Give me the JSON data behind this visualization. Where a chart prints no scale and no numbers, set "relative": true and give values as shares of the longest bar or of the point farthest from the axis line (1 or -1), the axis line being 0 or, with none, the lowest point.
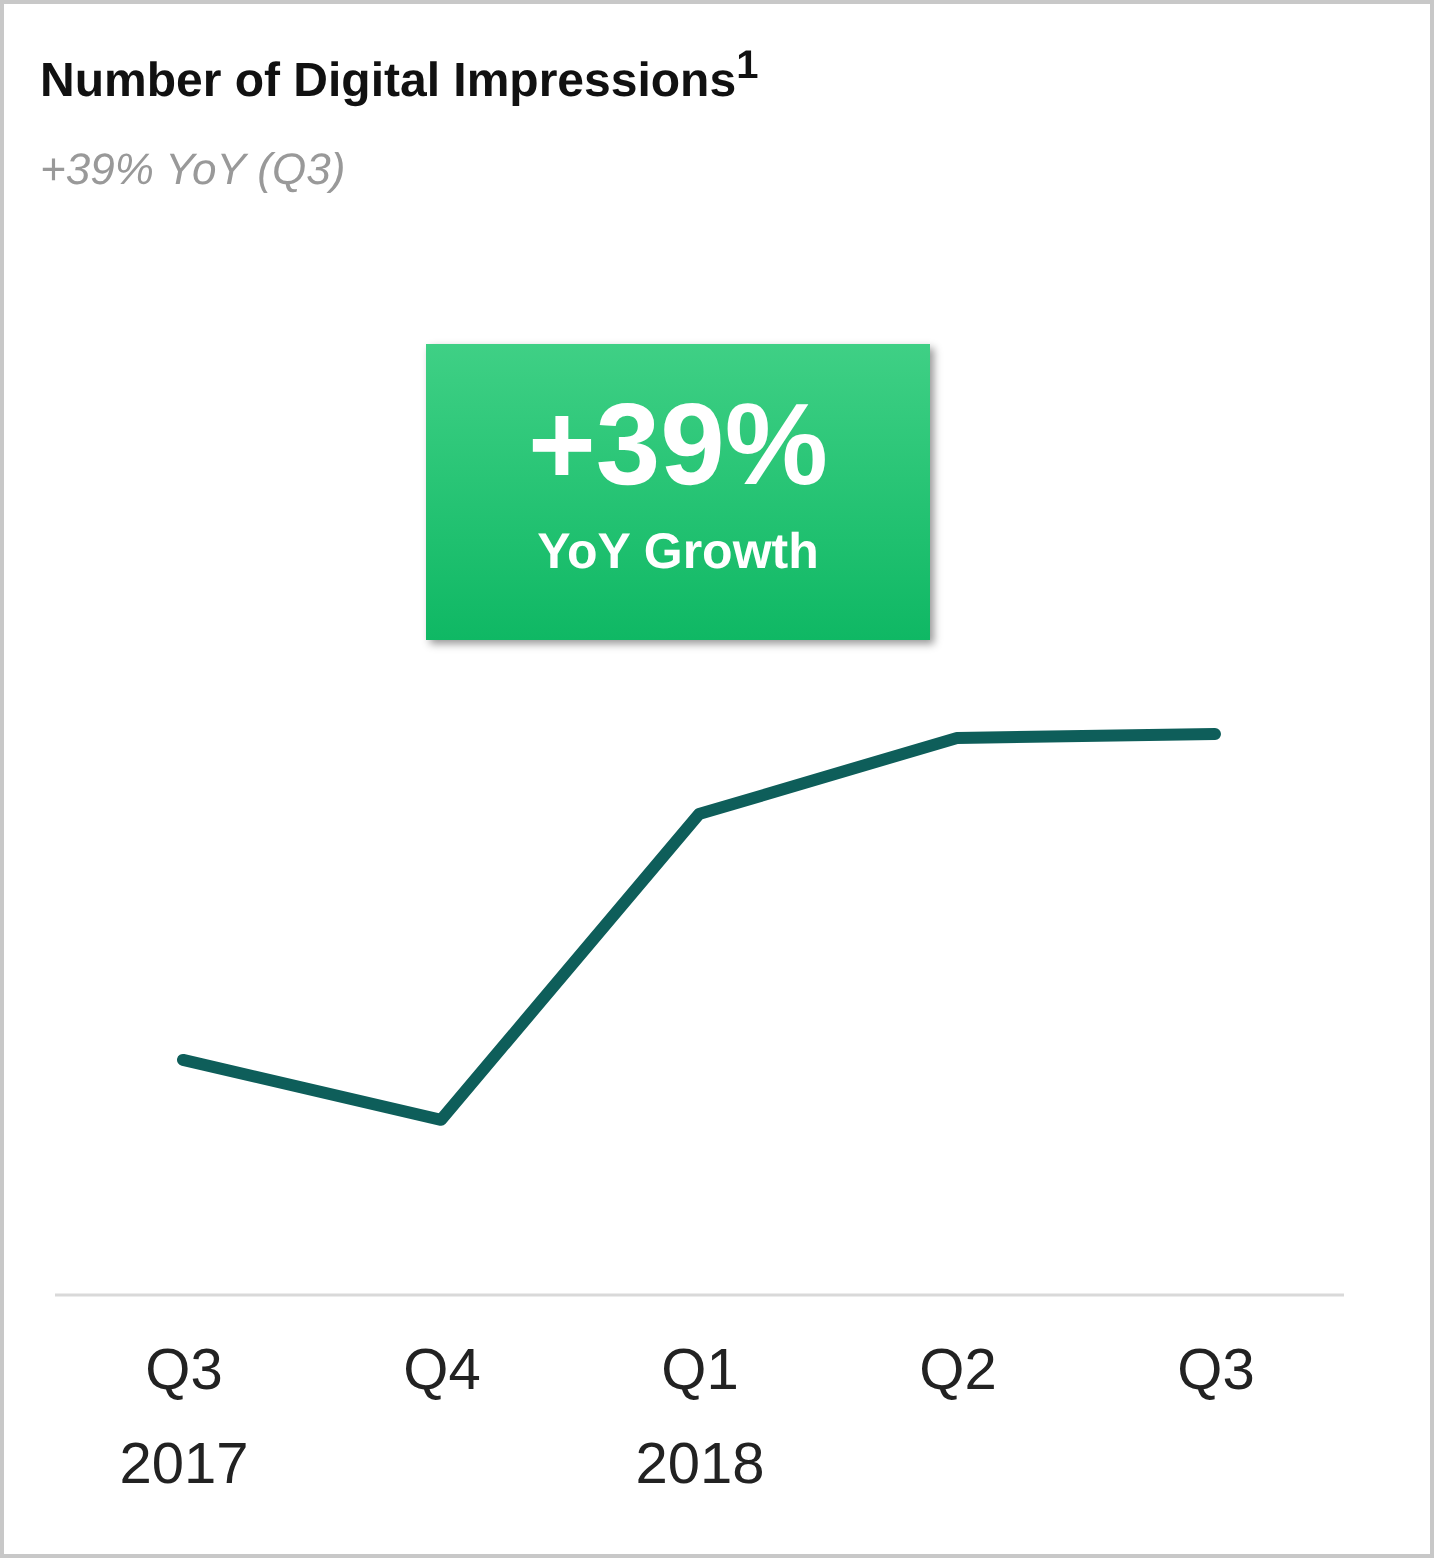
{
  "chart_data": {
    "type": "line",
    "title": "Number of Digital Impressions$^{1}$",
    "subtitle": "+39% YoY (Q3)",
    "categories": [
      "Q3 2017",
      "Q4",
      "Q1 2018",
      "Q2",
      "Q3"
    ],
    "relative": true,
    "values": [
      0.418,
      0.311,
      0.857,
      0.993,
      1
    ],
    "color": "#0e5e5a",
    "line_style": "solid",
    "annotations": [
      "+39%",
      "YoY Growth"
    ]
  }
}
